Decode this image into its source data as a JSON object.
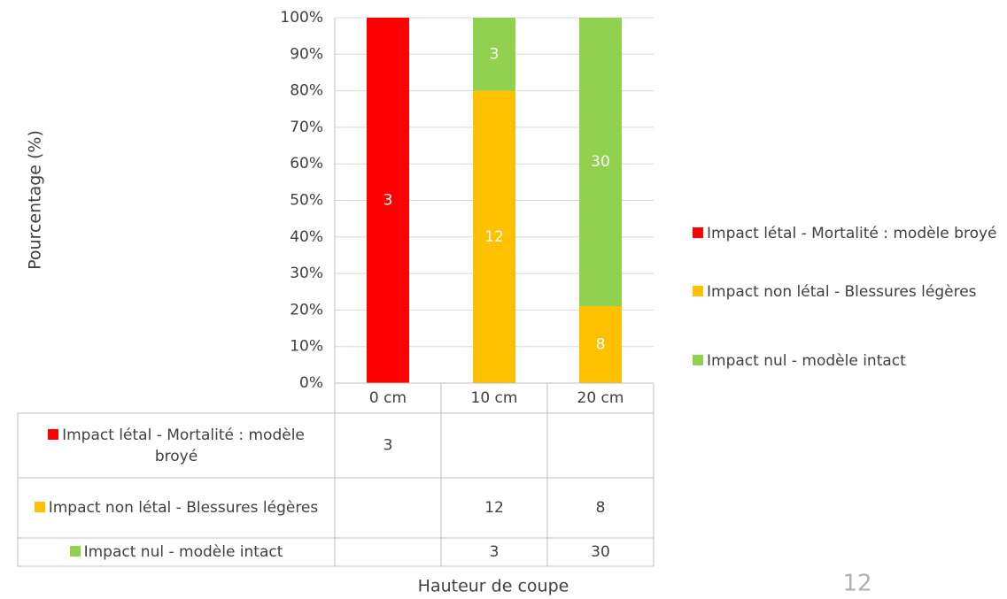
{
  "chart_data": {
    "type": "bar",
    "stacking": "percent",
    "categories": [
      "0 cm",
      "10 cm",
      "20 cm"
    ],
    "series": [
      {
        "name": "Impact létal - Mortalité : modèle broyé",
        "color": "#ff0000",
        "values": [
          3,
          null,
          null
        ]
      },
      {
        "name": "Impact non létal - Blessures légères",
        "color": "#ffc000",
        "values": [
          null,
          12,
          8
        ]
      },
      {
        "name": "Impact nul - modèle intact",
        "color": "#92d050",
        "values": [
          null,
          3,
          30
        ]
      }
    ],
    "ylabel": "Pourcentage (%)",
    "xlabel": "Hauteur de coupe",
    "ylim": [
      0,
      100
    ],
    "yticks": [
      {
        "value": 0,
        "label": "0%"
      },
      {
        "value": 10,
        "label": "10%"
      },
      {
        "value": 20,
        "label": "20%"
      },
      {
        "value": 30,
        "label": "30%"
      },
      {
        "value": 40,
        "label": "40%"
      },
      {
        "value": 50,
        "label": "50%"
      },
      {
        "value": 60,
        "label": "60%"
      },
      {
        "value": 70,
        "label": "70%"
      },
      {
        "value": 80,
        "label": "80%"
      },
      {
        "value": 90,
        "label": "90%"
      },
      {
        "value": 100,
        "label": "100%"
      }
    ],
    "grid": true,
    "legend": "right",
    "data_table": true
  },
  "page_number": "12"
}
